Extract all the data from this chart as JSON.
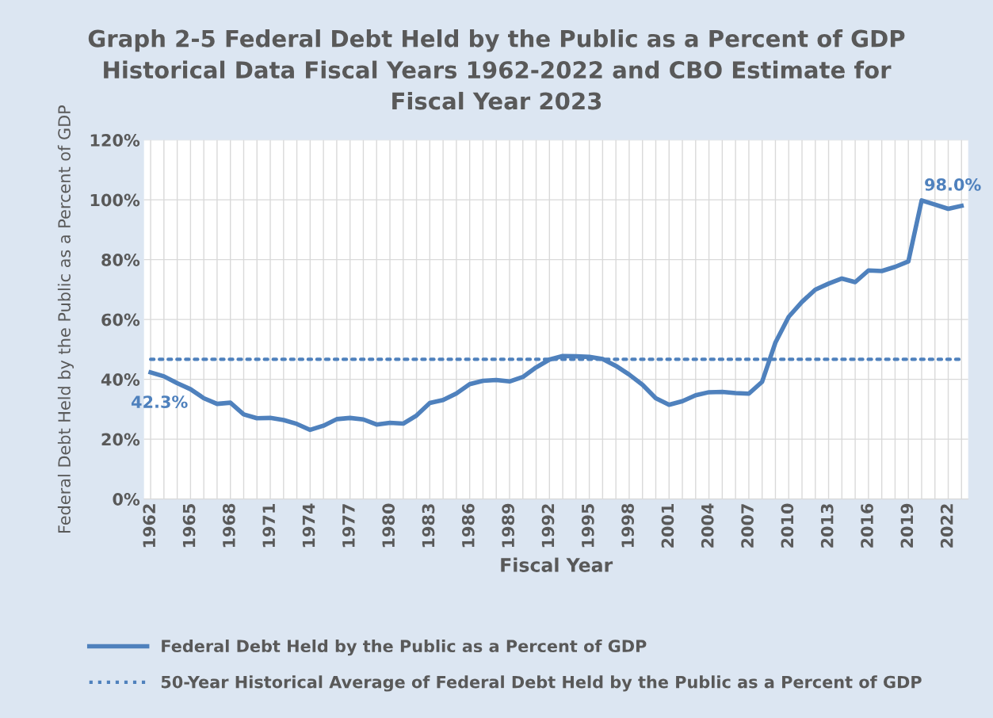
{
  "chart_data": {
    "type": "line",
    "title": "Graph 2-5 Federal Debt Held by the Public as a Percent of GDP\nHistorical Data Fiscal Years 1962-2022 and CBO Estimate for\nFiscal Year 2023",
    "xlabel": "Fiscal Year",
    "ylabel": "Federal Debt Held by the Public as a Percent of GDP",
    "categories": [
      "1962",
      null,
      null,
      "1965",
      null,
      null,
      "1968",
      null,
      null,
      "1971",
      null,
      null,
      "1974",
      null,
      null,
      "1977",
      null,
      null,
      "1980",
      null,
      null,
      "1983",
      null,
      null,
      "1986",
      null,
      null,
      "1989",
      null,
      null,
      "1992",
      null,
      null,
      "1995",
      null,
      null,
      "1998",
      null,
      null,
      "2001",
      null,
      null,
      "2004",
      null,
      null,
      "2007",
      null,
      null,
      "2010",
      null,
      null,
      "2013",
      null,
      null,
      "2016",
      null,
      null,
      "2019",
      null,
      null,
      "2022",
      null
    ],
    "series": [
      {
        "name": "Federal Debt Held by the Public as a Percent of GDP",
        "color": "#4f81bd",
        "line_style": "solid",
        "values": [
          42.3,
          41.0,
          38.7,
          36.7,
          33.7,
          31.8,
          32.2,
          28.3,
          27.0,
          27.1,
          26.4,
          25.1,
          23.1,
          24.5,
          26.7,
          27.1,
          26.6,
          24.9,
          25.5,
          25.2,
          27.9,
          32.1,
          33.1,
          35.3,
          38.4,
          39.5,
          39.8,
          39.3,
          40.8,
          44.0,
          46.6,
          47.8,
          47.7,
          47.5,
          46.8,
          44.5,
          41.6,
          38.2,
          33.7,
          31.5,
          32.7,
          34.7,
          35.7,
          35.8,
          35.4,
          35.2,
          39.2,
          52.3,
          60.9,
          65.9,
          70.0,
          72.0,
          73.7,
          72.5,
          76.4,
          76.2,
          77.6,
          79.4,
          99.8,
          98.4,
          97.0,
          98.0
        ],
        "value_labels": [
          "42.3%",
          null,
          null,
          null,
          null,
          null,
          null,
          null,
          null,
          null,
          null,
          null,
          null,
          null,
          null,
          null,
          null,
          null,
          null,
          null,
          null,
          null,
          null,
          null,
          null,
          null,
          null,
          null,
          null,
          null,
          null,
          null,
          null,
          null,
          null,
          null,
          null,
          null,
          null,
          null,
          null,
          null,
          null,
          null,
          null,
          null,
          null,
          null,
          null,
          null,
          null,
          null,
          null,
          null,
          null,
          null,
          null,
          null,
          null,
          null,
          null,
          "98.0%"
        ]
      },
      {
        "name": "50-Year Historical Average of Federal Debt Held by the Public as a Percent of GDP",
        "color": "#4f81bd",
        "line_style": "dotted",
        "values": [
          46.7,
          46.7,
          46.7,
          46.7,
          46.7,
          46.7,
          46.7,
          46.7,
          46.7,
          46.7,
          46.7,
          46.7,
          46.7,
          46.7,
          46.7,
          46.7,
          46.7,
          46.7,
          46.7,
          46.7,
          46.7,
          46.7,
          46.7,
          46.7,
          46.7,
          46.7,
          46.7,
          46.7,
          46.7,
          46.7,
          46.7,
          46.7,
          46.7,
          46.7,
          46.7,
          46.7,
          46.7,
          46.7,
          46.7,
          46.7,
          46.7,
          46.7,
          46.7,
          46.7,
          46.7,
          46.7,
          46.7,
          46.7,
          46.7,
          46.7,
          46.7,
          46.7,
          46.7,
          46.7,
          46.7,
          46.7,
          46.7,
          46.7,
          46.7,
          46.7,
          46.7,
          46.7
        ]
      }
    ],
    "ylim": [
      0,
      120
    ],
    "yticks": [
      {
        "value": 0,
        "label": "0%"
      },
      {
        "value": 20,
        "label": "20%"
      },
      {
        "value": 40,
        "label": "40%"
      },
      {
        "value": 60,
        "label": "60%"
      },
      {
        "value": 80,
        "label": "80%"
      },
      {
        "value": 100,
        "label": "100%"
      },
      {
        "value": 120,
        "label": "120%"
      }
    ],
    "grid": true,
    "legend": "bottom",
    "marker": "none"
  }
}
